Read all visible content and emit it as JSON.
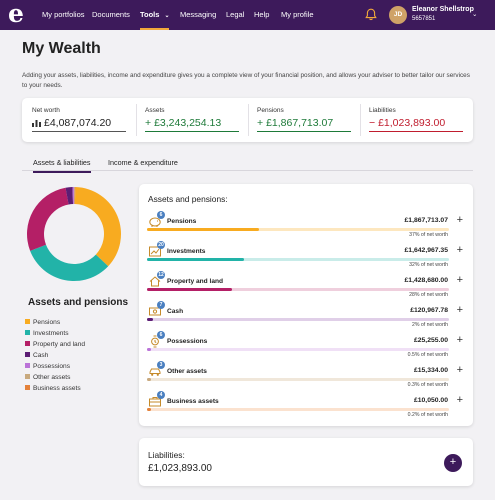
{
  "nav": {
    "logo": "e",
    "items": [
      {
        "label": "My portfolios"
      },
      {
        "label": "Documents"
      },
      {
        "label": "Tools"
      },
      {
        "label": "Messaging"
      },
      {
        "label": "Legal"
      },
      {
        "label": "Help"
      },
      {
        "label": "My profile"
      }
    ],
    "active": "Tools",
    "user": {
      "initials": "JD",
      "name": "Eleanor Shellstrop",
      "id": "5657851"
    }
  },
  "page": {
    "title": "My Wealth",
    "intro": "Adding your assets, liabilities, income and expenditure gives you a complete view of your financial position, and allows your adviser to better tailor our services to your needs."
  },
  "summary": {
    "net_worth": {
      "label": "Net worth",
      "value": "£4,087,074.20"
    },
    "assets": {
      "label": "Assets",
      "sign": "+",
      "value": "£3,243,254.13"
    },
    "pensions": {
      "label": "Pensions",
      "sign": "+",
      "value": "£1,867,713.07"
    },
    "liabilities": {
      "label": "Liabilities",
      "sign": "−",
      "value": "£1,023,893.00"
    }
  },
  "tabs": [
    {
      "label": "Assets & liabilities",
      "active": true
    },
    {
      "label": "Income & expenditure",
      "active": false
    }
  ],
  "legend": {
    "title": "Assets and pensions",
    "items": [
      {
        "label": "Pensions",
        "color": "#f8ab20"
      },
      {
        "label": "Investments",
        "color": "#22b3a8"
      },
      {
        "label": "Property and land",
        "color": "#b41f66"
      },
      {
        "label": "Cash",
        "color": "#5c1d74"
      },
      {
        "label": "Possessions",
        "color": "#bb73d8"
      },
      {
        "label": "Other assets",
        "color": "#c8a97e"
      },
      {
        "label": "Business assets",
        "color": "#e4813a"
      }
    ]
  },
  "assets_card": {
    "title": "Assets and pensions:",
    "rows": [
      {
        "name": "Pensions",
        "count": "6",
        "value": "£1,867,713.07",
        "pct": "37% of net worth",
        "fraction": 0.37,
        "color": "#f8ab20",
        "track": "#fde7bf",
        "icon": "piggy-bank-icon"
      },
      {
        "name": "Investments",
        "count": "20",
        "value": "£1,642,967.35",
        "pct": "32% of net worth",
        "fraction": 0.32,
        "color": "#22b3a8",
        "track": "#c9ece9",
        "icon": "chart-icon"
      },
      {
        "name": "Property and land",
        "count": "12",
        "value": "£1,428,680.00",
        "pct": "28% of net worth",
        "fraction": 0.28,
        "color": "#b41f66",
        "track": "#efcfdd",
        "icon": "house-icon"
      },
      {
        "name": "Cash",
        "count": "7",
        "value": "£120,967.78",
        "pct": "2% of net worth",
        "fraction": 0.02,
        "color": "#5c1d74",
        "track": "#e0cfe8",
        "icon": "cash-icon"
      },
      {
        "name": "Possessions",
        "count": "6",
        "value": "£25,255.00",
        "pct": "0.5% of net worth",
        "fraction": 0.005,
        "color": "#bb73d8",
        "track": "#f0e0f6",
        "icon": "watch-icon"
      },
      {
        "name": "Other assets",
        "count": "3",
        "value": "£15,334.00",
        "pct": "0.3% of net worth",
        "fraction": 0.003,
        "color": "#c8a97e",
        "track": "#f0e7da",
        "icon": "car-icon"
      },
      {
        "name": "Business assets",
        "count": "4",
        "value": "£10,050.00",
        "pct": "0.2% of net worth",
        "fraction": 0.002,
        "color": "#e4813a",
        "track": "#fbe2cf",
        "icon": "briefcase-icon"
      }
    ]
  },
  "liabilities_card": {
    "title": "Liabilities:",
    "value": "£1,023,893.00"
  },
  "chart_data": {
    "type": "pie",
    "categories": [
      "Pensions",
      "Investments",
      "Property and land",
      "Cash",
      "Possessions",
      "Other assets",
      "Business assets"
    ],
    "values": [
      1867713.07,
      1642967.35,
      1428680.0,
      120967.78,
      25255.0,
      15334.0,
      10050.0
    ],
    "colors": [
      "#f8ab20",
      "#22b3a8",
      "#b41f66",
      "#5c1d74",
      "#bb73d8",
      "#c8a97e",
      "#e4813a"
    ],
    "title": "Assets and pensions"
  }
}
